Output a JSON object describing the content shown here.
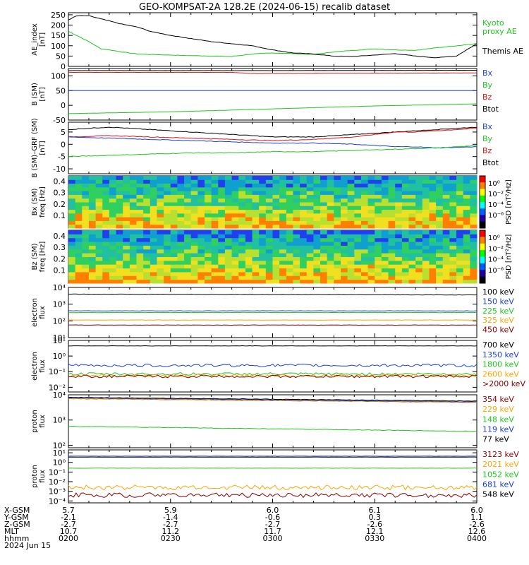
{
  "title": "GEO-KOMPSAT-2A 128.2E (2024-06-15) recalib dataset",
  "colors": {
    "black": "#000000",
    "blue": "#1a3fe0",
    "green": "#1ec81e",
    "red": "#e01010",
    "orange": "#ffa500",
    "darkred": "#8b0000"
  },
  "chart_data": [
    {
      "id": "ae",
      "type": "line",
      "ylabel": [
        "AE_index",
        "[nT]"
      ],
      "ylim": [
        0,
        260
      ],
      "yticks": [
        "0",
        "50",
        "100",
        "150",
        "200",
        "250"
      ],
      "series": [
        {
          "name": "Kyoto proxy AE",
          "color": "#1ec81e",
          "x": [
            0.0,
            0.02,
            0.05,
            0.08,
            0.1,
            0.13,
            0.17,
            0.2,
            0.25,
            0.3,
            0.35,
            0.4,
            0.45,
            0.5,
            0.55,
            0.6,
            0.65,
            0.7,
            0.75,
            0.8,
            0.85,
            0.9,
            0.95,
            1.0
          ],
          "y": [
            170,
            150,
            120,
            85,
            80,
            70,
            60,
            58,
            55,
            52,
            50,
            48,
            60,
            65,
            62,
            58,
            70,
            78,
            85,
            80,
            78,
            90,
            100,
            110
          ]
        },
        {
          "name": "Themis AE",
          "color": "#000000",
          "x": [
            0.0,
            0.02,
            0.05,
            0.08,
            0.1,
            0.13,
            0.17,
            0.2,
            0.25,
            0.3,
            0.35,
            0.4,
            0.45,
            0.5,
            0.55,
            0.6,
            0.65,
            0.7,
            0.75,
            0.8,
            0.85,
            0.9,
            0.95,
            1.0
          ],
          "y": [
            225,
            245,
            245,
            230,
            220,
            205,
            190,
            170,
            150,
            135,
            120,
            110,
            100,
            80,
            65,
            60,
            50,
            48,
            55,
            62,
            50,
            42,
            50,
            110
          ]
        }
      ]
    },
    {
      "id": "bgsm",
      "type": "line",
      "ylabel": [
        "B (SM)",
        "[nT]"
      ],
      "ylim": [
        -50,
        125
      ],
      "yticks": [
        "-50",
        "0",
        "50",
        "100"
      ],
      "series": [
        {
          "name": "Bx",
          "color": "#1a3fe0",
          "x": [
            0,
            1
          ],
          "y": [
            50,
            50
          ]
        },
        {
          "name": "By",
          "color": "#1ec81e",
          "x": [
            0,
            0.25,
            0.5,
            0.75,
            1
          ],
          "y": [
            -28,
            -22,
            -12,
            -2,
            5
          ]
        },
        {
          "name": "Bz",
          "color": "#e01010",
          "x": [
            0,
            0.4,
            0.45,
            1
          ],
          "y": [
            112,
            112,
            108,
            110
          ]
        },
        {
          "name": "Btot",
          "color": "#000000",
          "x": [
            0,
            0.5,
            1
          ],
          "y": [
            118,
            118,
            119
          ]
        }
      ]
    },
    {
      "id": "bdiff",
      "type": "line",
      "ylabel": [
        "B (SM)–GRF (SM)",
        "[nT]"
      ],
      "ylim": [
        -12,
        9
      ],
      "yticks": [
        "-10",
        "-5",
        "0",
        "5"
      ],
      "series": [
        {
          "name": "Btot",
          "color": "#000000",
          "x": [
            0,
            0.1,
            0.2,
            0.3,
            0.4,
            0.5,
            0.6,
            0.7,
            0.75,
            0.8,
            0.85,
            0.9,
            1
          ],
          "y": [
            6,
            7,
            6,
            5,
            4,
            3,
            3,
            4,
            4.5,
            5,
            5.5,
            6,
            7
          ]
        },
        {
          "name": "Bz",
          "color": "#e01010",
          "x": [
            0,
            0.1,
            0.2,
            0.3,
            0.4,
            0.5,
            0.6,
            0.7,
            0.75,
            0.8,
            0.85,
            0.9,
            1
          ],
          "y": [
            3,
            3.5,
            3,
            2.5,
            2,
            1.5,
            2,
            3,
            4,
            5,
            5,
            5.5,
            6.5
          ]
        },
        {
          "name": "Bx",
          "color": "#1a3fe0",
          "x": [
            0,
            0.1,
            0.2,
            0.3,
            0.4,
            0.5,
            0.6,
            0.7,
            0.75,
            0.8,
            0.85,
            0.9,
            1
          ],
          "y": [
            3,
            2.5,
            2,
            1.5,
            1,
            0.5,
            0.5,
            0,
            -0.5,
            -1,
            -1,
            -1.5,
            -1
          ]
        },
        {
          "name": "By",
          "color": "#1ec81e",
          "x": [
            0,
            0.1,
            0.2,
            0.3,
            0.4,
            0.5,
            0.6,
            0.7,
            0.8,
            0.9,
            1
          ],
          "y": [
            -5,
            -4.5,
            -4,
            -3.5,
            -3.5,
            -3,
            -3,
            -2.5,
            -2,
            -1.5,
            -0.5
          ]
        }
      ]
    },
    {
      "id": "bxspec",
      "type": "heatmap",
      "ylabel": [
        "Bx (SM)",
        "freq [Hz]"
      ],
      "ylim": [
        0.05,
        0.5
      ],
      "yticks": [
        "0.1",
        "0.2",
        "0.3",
        "0.4"
      ],
      "cbar_label": "PSD [nT²/Hz]",
      "cbar_ticks": [
        "10⁰",
        "10⁻²",
        "10⁻⁴",
        "10⁻⁶"
      ]
    },
    {
      "id": "bzspec",
      "type": "heatmap",
      "ylabel": [
        "Bz (SM)",
        "freq [Hz]"
      ],
      "ylim": [
        0.05,
        0.5
      ],
      "yticks": [
        "0.1",
        "0.2",
        "0.3",
        "0.4"
      ],
      "cbar_label": "PSD [nT²/Hz]",
      "cbar_ticks": [
        "10⁰",
        "10⁻²",
        "10⁻⁴",
        "10⁻⁶"
      ]
    },
    {
      "id": "eflux1",
      "type": "line",
      "log": true,
      "ylabel": [
        "electron",
        "flux"
      ],
      "ylim_log": [
        1,
        4
      ],
      "yticks": [
        "10¹",
        "10²",
        "10³",
        "10⁴"
      ],
      "series": [
        {
          "name": "100 keV",
          "color": "#000000",
          "x": [
            0,
            1
          ],
          "y": [
            3.6,
            3.55
          ]
        },
        {
          "name": "150 keV",
          "color": "#1a3fe0",
          "x": [
            0,
            1
          ],
          "y": [
            2.6,
            2.6
          ]
        },
        {
          "name": "225 keV",
          "color": "#1ec81e",
          "x": [
            0,
            1
          ],
          "y": [
            2.5,
            2.5
          ]
        },
        {
          "name": "325 keV",
          "color": "#ffa500",
          "x": [
            0,
            1
          ],
          "y": [
            2.05,
            2.05
          ]
        },
        {
          "name": "450 keV",
          "color": "#8b0000",
          "x": [
            0,
            1
          ],
          "y": [
            1.75,
            1.75
          ]
        }
      ]
    },
    {
      "id": "eflux2",
      "type": "line",
      "log": true,
      "ylabel": [
        "electron",
        "flux"
      ],
      "ylim_log": [
        -2.3,
        1
      ],
      "yticks": [
        "10⁻²",
        "10⁻¹",
        "10⁰",
        "10¹"
      ],
      "series": [
        {
          "name": "700 keV",
          "color": "#000000",
          "x": [
            0,
            1
          ],
          "y": [
            0.65,
            0.65
          ]
        },
        {
          "name": "1350 keV",
          "color": "#1a3fe0",
          "x": [
            0,
            1
          ],
          "y": [
            -0.6,
            -0.6
          ]
        },
        {
          "name": "1800 keV",
          "color": "#1ec81e",
          "x": [
            0,
            1
          ],
          "y": [
            -1.15,
            -1.15
          ]
        },
        {
          "name": "2600 keV",
          "color": "#ffa500",
          "x": [
            0,
            1
          ],
          "y": [
            -1.25,
            -1.25
          ]
        },
        {
          "name": ">2000 keV",
          "color": "#8b0000",
          "x": [
            0,
            1
          ],
          "y": [
            -1.3,
            -1.3
          ]
        }
      ]
    },
    {
      "id": "pflux1",
      "type": "line",
      "log": true,
      "ylabel": [
        "proton",
        "flux"
      ],
      "ylim_log": [
        1.9,
        4
      ],
      "yticks": [
        "10²",
        "10³",
        "10⁴"
      ],
      "series": [
        {
          "name": "354 keV",
          "color": "#8b0000",
          "x": [
            0,
            1
          ],
          "y": [
            3.85,
            3.7
          ]
        },
        {
          "name": "229 keV",
          "color": "#ffa500",
          "x": [
            0,
            1
          ],
          "y": [
            3.85,
            3.7
          ]
        },
        {
          "name": "148 keV",
          "color": "#1ec81e",
          "x": [
            0,
            1
          ],
          "y": [
            2.75,
            2.55
          ]
        },
        {
          "name": "119 keV",
          "color": "#1a3fe0",
          "x": [
            0,
            1
          ],
          "y": [
            3.88,
            3.72
          ]
        },
        {
          "name": "77 keV",
          "color": "#000000",
          "x": [
            0,
            1
          ],
          "y": [
            3.9,
            3.75
          ]
        }
      ]
    },
    {
      "id": "pflux2",
      "type": "line",
      "log": true,
      "ylabel": [
        "proton",
        "flux"
      ],
      "ylim_log": [
        -4.2,
        1.3
      ],
      "yticks": [
        "10⁻⁴",
        "10⁻³",
        "10⁻²",
        "10⁻¹",
        "10⁰",
        "10¹"
      ],
      "series": [
        {
          "name": "3123 keV",
          "color": "#8b0000",
          "x": [
            0,
            1
          ],
          "y": [
            -3.4,
            -3.4
          ]
        },
        {
          "name": "2021 keV",
          "color": "#ffa500",
          "x": [
            0,
            1
          ],
          "y": [
            -2.6,
            -2.6
          ]
        },
        {
          "name": "1052 keV",
          "color": "#1ec81e",
          "x": [
            0,
            1
          ],
          "y": [
            -0.6,
            -0.6
          ]
        },
        {
          "name": "681 keV",
          "color": "#1a3fe0",
          "x": [
            0,
            1
          ],
          "y": [
            0.65,
            0.65
          ]
        },
        {
          "name": "548 keV",
          "color": "#000000",
          "x": [
            0,
            1
          ],
          "y": [
            0.55,
            0.55
          ]
        }
      ]
    }
  ],
  "legends": {
    "ae": [
      {
        "text": "Kyoto",
        "color": "#1ec81e"
      },
      {
        "text": "proxy AE",
        "color": "#1ec81e"
      },
      {
        "text": "Themis AE",
        "color": "#000000"
      }
    ],
    "bgsm": [
      {
        "text": "Bx",
        "color": "#1a3fe0"
      },
      {
        "text": "By",
        "color": "#1ec81e"
      },
      {
        "text": "Bz",
        "color": "#e01010"
      },
      {
        "text": "Btot",
        "color": "#000000"
      }
    ],
    "bdiff": [
      {
        "text": "Bx",
        "color": "#1a3fe0"
      },
      {
        "text": "By",
        "color": "#1ec81e"
      },
      {
        "text": "Bz",
        "color": "#e01010"
      },
      {
        "text": "Btot",
        "color": "#000000"
      }
    ],
    "eflux1": [
      {
        "text": "100 keV",
        "color": "#000000"
      },
      {
        "text": "150 keV",
        "color": "#1a3fe0"
      },
      {
        "text": "225 keV",
        "color": "#1ec81e"
      },
      {
        "text": "325 keV",
        "color": "#ffa500"
      },
      {
        "text": "450 keV",
        "color": "#8b0000"
      }
    ],
    "eflux2": [
      {
        "text": "700 keV",
        "color": "#000000"
      },
      {
        "text": "1350 keV",
        "color": "#1a3fe0"
      },
      {
        "text": "1800 keV",
        "color": "#1ec81e"
      },
      {
        "text": "2600 keV",
        "color": "#ffa500"
      },
      {
        "text": ">2000 keV",
        "color": "#8b0000"
      }
    ],
    "pflux1": [
      {
        "text": "354 keV",
        "color": "#8b0000"
      },
      {
        "text": "229 keV",
        "color": "#ffa500"
      },
      {
        "text": "148 keV",
        "color": "#1ec81e"
      },
      {
        "text": "119 keV",
        "color": "#1a3fe0"
      },
      {
        "text": "77 keV",
        "color": "#000000"
      }
    ],
    "pflux2": [
      {
        "text": "3123 keV",
        "color": "#8b0000"
      },
      {
        "text": "2021 keV",
        "color": "#ffa500"
      },
      {
        "text": "1052 keV",
        "color": "#1ec81e"
      },
      {
        "text": "681 keV",
        "color": "#1a3fe0"
      },
      {
        "text": "548 keV",
        "color": "#000000"
      }
    ]
  },
  "ephemeris": {
    "row_labels": [
      "X-GSM",
      "Y-GSM",
      "Z-GSM",
      "MLT",
      "hhmm",
      "2024 Jun 15"
    ],
    "columns": [
      [
        "5.7",
        "-2.1",
        "-2.7",
        "10.7",
        "0200"
      ],
      [
        "5.9",
        "-1.4",
        "-2.7",
        "11.2",
        "0230"
      ],
      [
        "6.0",
        "-0.6",
        "-2.7",
        "11.7",
        "0300"
      ],
      [
        "6.1",
        "0.3",
        "-2.6",
        "12.1",
        "0330"
      ],
      [
        "6.0",
        "1.1",
        "-2.6",
        "12.6",
        "0400"
      ]
    ]
  }
}
